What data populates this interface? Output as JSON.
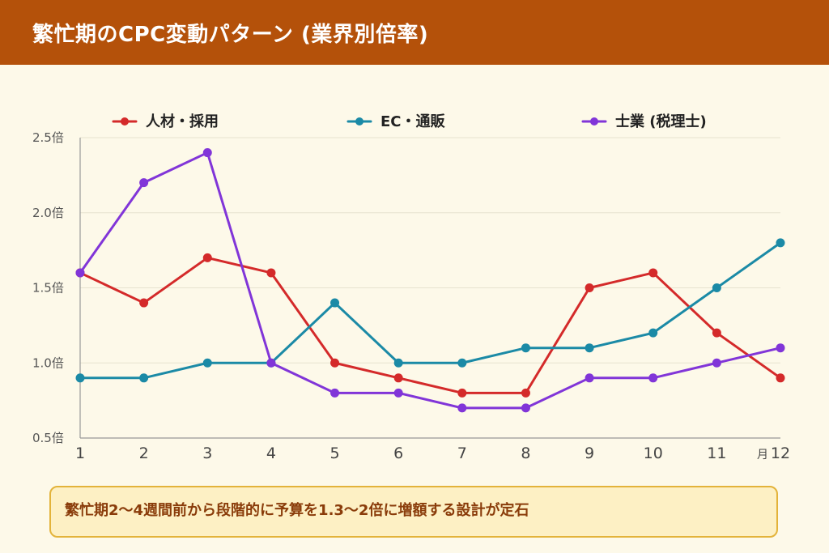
{
  "header": {
    "title": "繁忙期のCPC変動パターン (業界別倍率)"
  },
  "chart_data": {
    "type": "line",
    "x": [
      1,
      2,
      3,
      4,
      5,
      6,
      7,
      8,
      9,
      10,
      11,
      12
    ],
    "xunit": "月",
    "ylim": [
      0.5,
      2.5
    ],
    "yticks": [
      {
        "value": 0.5,
        "label": "0.5倍"
      },
      {
        "value": 1.0,
        "label": "1.0倍"
      },
      {
        "value": 1.5,
        "label": "1.5倍"
      },
      {
        "value": 2.0,
        "label": "2.0倍"
      },
      {
        "value": 2.5,
        "label": "2.5倍"
      }
    ],
    "grid": true,
    "legend_position": "top",
    "series": [
      {
        "name": "人材・採用",
        "color": "#d42a2a",
        "values": [
          1.6,
          1.4,
          1.7,
          1.6,
          1.0,
          0.9,
          0.8,
          0.8,
          1.5,
          1.6,
          1.2,
          0.9
        ]
      },
      {
        "name": "EC・通販",
        "color": "#1b8aa6",
        "values": [
          0.9,
          0.9,
          1.0,
          1.0,
          1.4,
          1.0,
          1.0,
          1.1,
          1.1,
          1.2,
          1.5,
          1.8
        ]
      },
      {
        "name": "士業 (税理士)",
        "color": "#8135d8",
        "values": [
          1.6,
          2.2,
          2.4,
          1.0,
          0.8,
          0.8,
          0.7,
          0.7,
          0.9,
          0.9,
          1.0,
          1.1
        ]
      }
    ]
  },
  "note": {
    "text": "繁忙期2〜4週間前から段階的に予算を1.3〜2倍に増額する設計が定石"
  }
}
